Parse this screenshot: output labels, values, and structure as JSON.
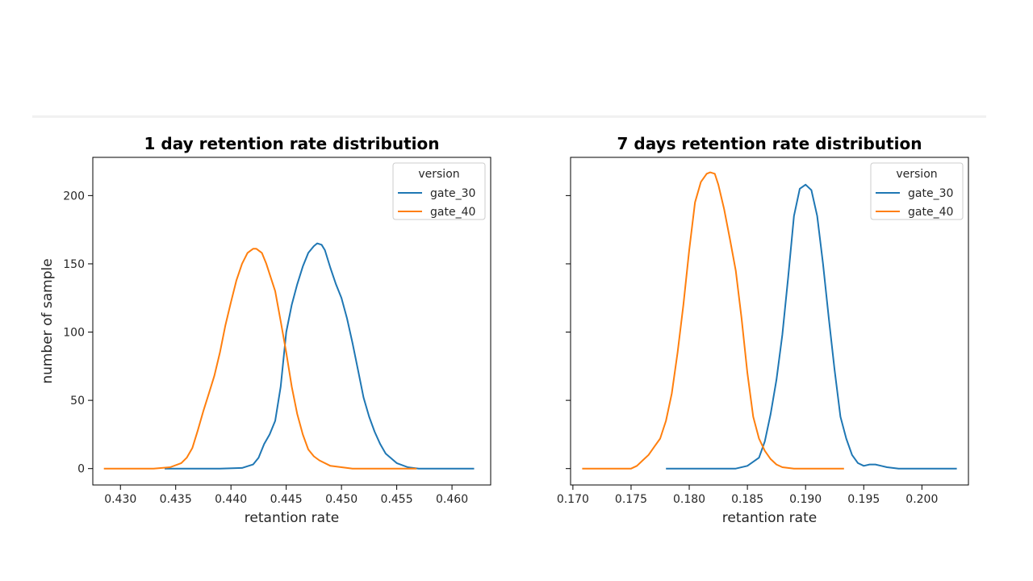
{
  "colors": {
    "gate_30": "#1f77b4",
    "gate_40": "#ff7f0e"
  },
  "chart_data": [
    {
      "type": "line",
      "title": "1 day retention rate distribution",
      "xlabel": "retantion rate",
      "ylabel": "number of sample",
      "xlim": [
        0.4275,
        0.4635
      ],
      "ylim": [
        -12,
        228
      ],
      "xticks": [
        0.43,
        0.435,
        0.44,
        0.445,
        0.45,
        0.455,
        0.46
      ],
      "xtick_labels": [
        "0.430",
        "0.435",
        "0.440",
        "0.445",
        "0.450",
        "0.455",
        "0.460"
      ],
      "yticks": [
        0,
        50,
        100,
        150,
        200
      ],
      "ytick_labels": [
        "0",
        "50",
        "100",
        "150",
        "200"
      ],
      "legend": {
        "title": "version",
        "position": "top-right"
      },
      "series": [
        {
          "name": "gate_30",
          "color": "#1f77b4",
          "x": [
            0.434,
            0.439,
            0.441,
            0.442,
            0.4425,
            0.443,
            0.4435,
            0.444,
            0.4445,
            0.445,
            0.4455,
            0.446,
            0.4465,
            0.447,
            0.4475,
            0.4478,
            0.4482,
            0.4485,
            0.449,
            0.4495,
            0.45,
            0.4505,
            0.451,
            0.4515,
            0.452,
            0.4525,
            0.453,
            0.4535,
            0.454,
            0.455,
            0.456,
            0.457,
            0.462
          ],
          "y": [
            0,
            0,
            0.5,
            3,
            8,
            18,
            25,
            35,
            60,
            100,
            120,
            135,
            148,
            158,
            163,
            165,
            164,
            160,
            147,
            135,
            125,
            110,
            92,
            72,
            52,
            38,
            27,
            18,
            11,
            4,
            1,
            0,
            0
          ]
        },
        {
          "name": "gate_40",
          "color": "#ff7f0e",
          "x": [
            0.4285,
            0.433,
            0.4345,
            0.4355,
            0.436,
            0.4365,
            0.437,
            0.4375,
            0.438,
            0.4385,
            0.439,
            0.4395,
            0.44,
            0.4405,
            0.441,
            0.4415,
            0.442,
            0.4423,
            0.4428,
            0.4432,
            0.444,
            0.4445,
            0.445,
            0.4455,
            0.446,
            0.4465,
            0.447,
            0.4475,
            0.448,
            0.449,
            0.45,
            0.451,
            0.4525,
            0.4568
          ],
          "y": [
            0,
            0,
            1,
            4,
            8,
            15,
            28,
            42,
            55,
            68,
            85,
            105,
            122,
            138,
            150,
            158,
            161,
            161,
            158,
            150,
            130,
            108,
            85,
            60,
            40,
            25,
            14,
            9,
            6,
            2,
            1,
            0,
            0,
            0
          ]
        }
      ]
    },
    {
      "type": "line",
      "title": "7 days retention rate distribution",
      "xlabel": "retantion rate",
      "ylabel": "",
      "xlim": [
        0.1698,
        0.204
      ],
      "ylim": [
        -12,
        228
      ],
      "xticks": [
        0.17,
        0.175,
        0.18,
        0.185,
        0.19,
        0.195,
        0.2
      ],
      "xtick_labels": [
        "0.170",
        "0.175",
        "0.180",
        "0.185",
        "0.190",
        "0.195",
        "0.200"
      ],
      "yticks": [
        0,
        50,
        100,
        150,
        200
      ],
      "ytick_labels": [
        "",
        "",
        "",
        "",
        ""
      ],
      "legend": {
        "title": "version",
        "position": "top-right"
      },
      "series": [
        {
          "name": "gate_30",
          "color": "#1f77b4",
          "x": [
            0.178,
            0.184,
            0.185,
            0.186,
            0.1865,
            0.187,
            0.1875,
            0.188,
            0.1885,
            0.189,
            0.1895,
            0.19,
            0.1905,
            0.191,
            0.1915,
            0.192,
            0.1925,
            0.193,
            0.1935,
            0.194,
            0.1945,
            0.195,
            0.1955,
            0.196,
            0.1965,
            0.197,
            0.198,
            0.203
          ],
          "y": [
            0,
            0,
            2,
            8,
            20,
            40,
            65,
            98,
            140,
            185,
            205,
            208,
            204,
            185,
            150,
            110,
            72,
            38,
            22,
            10,
            4,
            2,
            3,
            3,
            2,
            1,
            0,
            0
          ]
        },
        {
          "name": "gate_40",
          "color": "#ff7f0e",
          "x": [
            0.1708,
            0.175,
            0.1755,
            0.176,
            0.1765,
            0.177,
            0.1775,
            0.178,
            0.1785,
            0.179,
            0.1795,
            0.18,
            0.1805,
            0.181,
            0.1815,
            0.1818,
            0.1822,
            0.1825,
            0.183,
            0.1835,
            0.184,
            0.1845,
            0.185,
            0.1855,
            0.186,
            0.1865,
            0.187,
            0.1875,
            0.188,
            0.189,
            0.19,
            0.1933
          ],
          "y": [
            0,
            0,
            2,
            6,
            10,
            16,
            22,
            35,
            55,
            85,
            120,
            160,
            195,
            210,
            216,
            217,
            216,
            208,
            190,
            168,
            145,
            110,
            70,
            38,
            22,
            13,
            7,
            3,
            1,
            0,
            0,
            0
          ]
        }
      ]
    }
  ]
}
